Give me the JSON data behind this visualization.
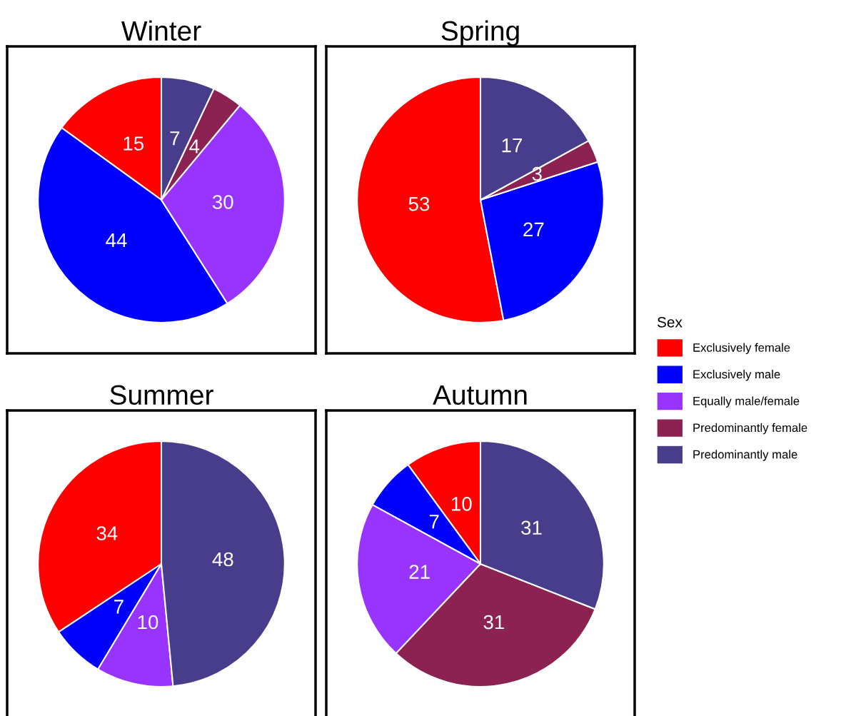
{
  "chart_data": [
    {
      "type": "pie",
      "title": "Winter",
      "categories": [
        "Exclusively female",
        "Exclusively male",
        "Equally male/female",
        "Predominantly female",
        "Predominantly male"
      ],
      "values": [
        15,
        44,
        30,
        4,
        7
      ],
      "colors": [
        "#ff0000",
        "#0000ff",
        "#9933ff",
        "#8b2252",
        "#483d8b"
      ],
      "data_labels": true,
      "legend": "right",
      "legend_title": "Sex"
    },
    {
      "type": "pie",
      "title": "Spring",
      "categories": [
        null,
        null,
        null,
        null
      ],
      "values": [
        53,
        27,
        3,
        17
      ],
      "colors": [
        "#ff0000",
        "#0000ff",
        "#8b2252",
        "#483d8b"
      ],
      "data_labels": true
    },
    {
      "type": "pie",
      "title": "Summer",
      "categories": [
        null,
        null,
        null,
        null
      ],
      "values": [
        34,
        7,
        10,
        48
      ],
      "colors": [
        "#ff0000",
        "#0000ff",
        "#9933ff",
        "#483d8b"
      ],
      "data_labels": true
    },
    {
      "type": "pie",
      "title": "Autumn",
      "categories": [
        null,
        null,
        null,
        null,
        null
      ],
      "values": [
        10,
        7,
        21,
        31,
        31
      ],
      "colors": [
        "#ff0000",
        "#0000ff",
        "#9933ff",
        "#8b2252",
        "#483d8b"
      ],
      "data_labels": true
    }
  ]
}
